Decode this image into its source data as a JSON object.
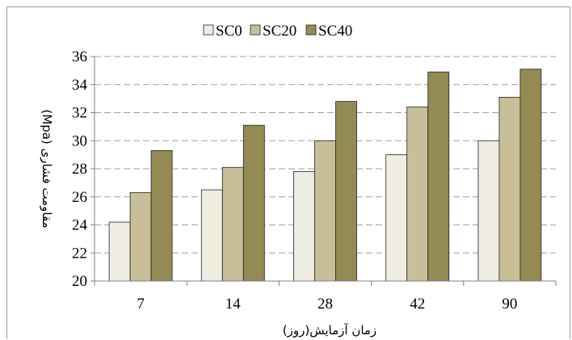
{
  "chart_data": {
    "type": "bar",
    "categories": [
      "7",
      "14",
      "28",
      "42",
      "90"
    ],
    "series": [
      {
        "name": "SC0",
        "values": [
          24.2,
          26.5,
          27.8,
          29.0,
          30.0
        ]
      },
      {
        "name": "SC20",
        "values": [
          26.3,
          28.1,
          30.0,
          32.4,
          33.1
        ]
      },
      {
        "name": "SC40",
        "values": [
          29.3,
          31.1,
          32.8,
          34.9,
          35.1
        ]
      }
    ],
    "xlabel": "زمان آزمایش(روز)",
    "ylabel": "مقاومت فشاری (Mpa)",
    "ylim": [
      20,
      36
    ],
    "yticks": [
      20,
      22,
      24,
      26,
      28,
      30,
      32,
      34,
      36
    ],
    "grid": true,
    "legend_position": "top",
    "colors": {
      "SC0": "#efede2",
      "SC20": "#c8bf98",
      "SC40": "#948a53",
      "grid": "#a0a0a0",
      "axis": "#808080",
      "bar_edge": "#222222"
    }
  }
}
